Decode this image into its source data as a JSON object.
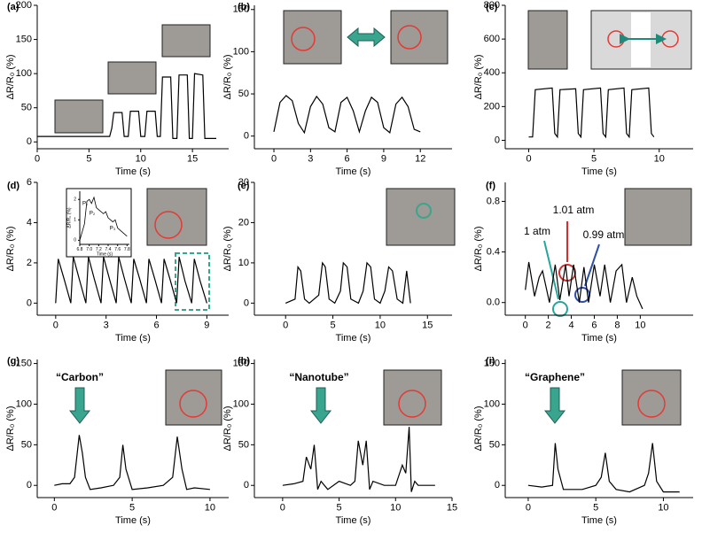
{
  "chart_data": [
    {
      "type": "line",
      "label": "(a)",
      "xlabel": "Time (s)",
      "ylabel": "ΔR/R₀ (%)",
      "xlim": [
        0,
        18.5
      ],
      "ylim": [
        -10,
        200
      ],
      "xticks": [
        0,
        5,
        10,
        15
      ],
      "yticks": [
        0,
        50,
        100,
        150,
        200
      ],
      "x": [
        0,
        7,
        7.2,
        7.4,
        8.2,
        8.4,
        8.8,
        9,
        9.8,
        10,
        10.4,
        10.6,
        11.4,
        11.6,
        11.9,
        12.1,
        12.9,
        13.1,
        13.5,
        13.7,
        14.5,
        14.7,
        15,
        15.2,
        16,
        16.2,
        17.3
      ],
      "series": [
        {
          "color": "#000000",
          "values": [
            8,
            8,
            20,
            43,
            43,
            8,
            8,
            45,
            45,
            8,
            8,
            45,
            45,
            8,
            8,
            95,
            95,
            5,
            5,
            98,
            98,
            5,
            5,
            100,
            98,
            5,
            5
          ]
        }
      ]
    },
    {
      "type": "line",
      "label": "(b)",
      "xlabel": "Time (s)",
      "ylabel": "ΔR/R₀ (%)",
      "xlim": [
        -1.6,
        14.6
      ],
      "ylim": [
        -15,
        155
      ],
      "xticks": [
        0,
        3,
        6,
        9,
        12
      ],
      "yticks": [
        0,
        50,
        100,
        150
      ],
      "x": [
        0,
        0.5,
        1,
        1.5,
        2,
        2.5,
        3,
        3.5,
        4,
        4.5,
        5,
        5.5,
        6,
        6.5,
        7,
        7.5,
        8,
        8.5,
        9,
        9.5,
        10,
        10.5,
        11,
        11.5,
        12
      ],
      "series": [
        {
          "color": "#000000",
          "values": [
            5,
            40,
            48,
            42,
            15,
            4,
            35,
            47,
            38,
            10,
            5,
            40,
            46,
            30,
            5,
            30,
            46,
            40,
            10,
            4,
            38,
            46,
            35,
            8,
            5
          ]
        }
      ]
    },
    {
      "type": "line",
      "label": "(c)",
      "xlabel": "Time (s)",
      "ylabel": "ΔR/R₀ (%)",
      "xlim": [
        -1.8,
        12.6
      ],
      "ylim": [
        -50,
        800
      ],
      "xticks": [
        0,
        5,
        10
      ],
      "yticks": [
        0,
        200,
        400,
        600,
        800
      ],
      "x": [
        0,
        0.3,
        0.5,
        1.8,
        2.0,
        2.2,
        2.4,
        3.6,
        3.8,
        4.0,
        4.2,
        5.5,
        5.7,
        5.9,
        6.1,
        7.3,
        7.5,
        7.7,
        7.9,
        9.2,
        9.4,
        9.6
      ],
      "series": [
        {
          "color": "#000000",
          "values": [
            20,
            20,
            300,
            310,
            40,
            20,
            300,
            305,
            40,
            20,
            300,
            310,
            40,
            20,
            300,
            310,
            40,
            20,
            300,
            310,
            40,
            20
          ]
        }
      ]
    },
    {
      "type": "line",
      "label": "(d)",
      "xlabel": "Time (s)",
      "ylabel": "ΔR/R₀ (%)",
      "xlim": [
        -1.1,
        10.3
      ],
      "ylim": [
        -0.6,
        6
      ],
      "xticks": [
        0,
        3,
        6,
        9
      ],
      "yticks": [
        0,
        2,
        4,
        6
      ],
      "x": [
        0,
        0.15,
        0.5,
        0.9,
        1.05,
        1.4,
        1.8,
        1.95,
        2.3,
        2.7,
        2.85,
        3.2,
        3.6,
        3.75,
        4.1,
        4.5,
        4.65,
        5.0,
        5.4,
        5.55,
        5.9,
        6.3,
        6.45,
        6.8,
        7.2,
        7.35,
        7.7,
        8.1,
        8.25,
        8.6,
        9.0
      ],
      "series": [
        {
          "color": "#000000",
          "values": [
            0,
            2.2,
            1.2,
            0,
            2.3,
            1.2,
            0,
            2.3,
            1.2,
            0,
            2.3,
            1.2,
            0,
            2.3,
            1.2,
            0,
            2.2,
            1.2,
            0,
            2.2,
            1.2,
            0,
            2.2,
            1.2,
            0,
            2.3,
            1.1,
            0,
            2.2,
            1.1,
            0
          ]
        }
      ]
    },
    {
      "type": "line",
      "label": "(e)",
      "xlabel": "Time (s)",
      "ylabel": "ΔR/R₀ (%)",
      "xlim": [
        -3.3,
        17.6
      ],
      "ylim": [
        -3,
        30
      ],
      "xticks": [
        0,
        5,
        10,
        15
      ],
      "yticks": [
        0,
        10,
        20,
        30
      ],
      "x": [
        0,
        1,
        1.3,
        1.6,
        2,
        2.5,
        3.5,
        3.9,
        4.2,
        4.6,
        5.2,
        5.8,
        6.1,
        6.5,
        6.9,
        7.7,
        8.2,
        8.6,
        9.0,
        9.4,
        10.0,
        10.5,
        10.9,
        11.3,
        11.8,
        12.4,
        12.8,
        13.2
      ],
      "series": [
        {
          "color": "#000000",
          "values": [
            0,
            1,
            9,
            8,
            1,
            0,
            2,
            10,
            9,
            1,
            0,
            3,
            10,
            9,
            1,
            0,
            3,
            10,
            9,
            1,
            0,
            3,
            9,
            8,
            1,
            0,
            8,
            0
          ]
        }
      ]
    },
    {
      "type": "line",
      "label": "(f)",
      "xlabel": "Time (s)",
      "ylabel": "ΔR/R₀ (%)",
      "xlim": [
        -1.75,
        14.6
      ],
      "ylim": [
        -0.1,
        0.95
      ],
      "xticks": [
        0,
        2,
        4,
        6,
        8,
        10
      ],
      "yticks": [
        {
          "value": 0,
          "label": "0.0"
        },
        0.4,
        0.8
      ],
      "x": [
        0,
        0.3,
        0.8,
        1.2,
        1.5,
        2.1,
        2.6,
        3.0,
        3.5,
        3.8,
        4.2,
        4.7,
        5.1,
        5.5,
        6.0,
        6.5,
        6.9,
        7.4,
        7.9,
        8.4,
        8.8,
        9.3,
        9.7,
        10.2
      ],
      "series": [
        {
          "color": "#000000",
          "values": [
            0.1,
            0.32,
            0.05,
            0.2,
            0.25,
            0.0,
            0.3,
            0.02,
            0.3,
            0.05,
            0.3,
            0.0,
            0.28,
            0.0,
            0.3,
            0.05,
            0.3,
            0.0,
            0.25,
            0.3,
            0.0,
            0.2,
            0.05,
            -0.05
          ]
        }
      ],
      "annotations": [
        {
          "text": "1.01 atm",
          "color": "#d32f2f"
        },
        {
          "text": "1 atm",
          "color": "#26a69a"
        },
        {
          "text": "0.99 atm",
          "color": "#2e4fa8"
        }
      ]
    },
    {
      "type": "line",
      "label": "(g)",
      "xlabel": "Time (s)",
      "ylabel": "ΔR/R₀ (%)",
      "xlim": [
        -1.1,
        11.2
      ],
      "ylim": [
        -15,
        155
      ],
      "xticks": [
        0,
        5,
        10
      ],
      "yticks": [
        0,
        50,
        100,
        150
      ],
      "x": [
        0,
        0.5,
        1,
        1.3,
        1.6,
        1.8,
        2.0,
        2.3,
        3,
        3.8,
        4.2,
        4.4,
        4.6,
        5,
        6,
        7,
        7.6,
        7.9,
        8.2,
        8.5,
        9,
        10
      ],
      "series": [
        {
          "color": "#000000",
          "values": [
            0,
            2,
            2,
            10,
            62,
            40,
            10,
            -5,
            -3,
            0,
            10,
            50,
            20,
            -5,
            -3,
            0,
            10,
            60,
            20,
            -5,
            -3,
            -5
          ]
        }
      ],
      "annotations": [
        {
          "text": "“Carbon”",
          "color": "#000000"
        }
      ]
    },
    {
      "type": "line",
      "label": "(h)",
      "xlabel": "Time (s)",
      "ylabel": "ΔR/R₀ (%)",
      "xlim": [
        -2.5,
        15
      ],
      "ylim": [
        -15,
        155
      ],
      "xticks": [
        0,
        5,
        10,
        15
      ],
      "yticks": [
        0,
        50,
        100,
        150
      ],
      "x": [
        0,
        1,
        1.8,
        2.1,
        2.5,
        2.8,
        3.1,
        3.4,
        4,
        5,
        6,
        6.4,
        6.7,
        7.1,
        7.4,
        7.7,
        8,
        9,
        10,
        10.6,
        10.9,
        11.2,
        11.4,
        11.7,
        12,
        13.5
      ],
      "series": [
        {
          "color": "#000000",
          "values": [
            0,
            2,
            5,
            35,
            20,
            50,
            -5,
            5,
            -5,
            5,
            0,
            5,
            55,
            25,
            55,
            -5,
            5,
            0,
            0,
            25,
            15,
            72,
            -8,
            5,
            0,
            0
          ]
        }
      ],
      "annotations": [
        {
          "text": "“Nanotube”",
          "color": "#000000"
        }
      ]
    },
    {
      "type": "line",
      "label": "(i)",
      "xlabel": "Time (s)",
      "ylabel": "ΔR/R₀ (%)",
      "xlim": [
        -1.7,
        12.2
      ],
      "ylim": [
        -15,
        155
      ],
      "xticks": [
        0,
        5,
        10
      ],
      "yticks": [
        0,
        50,
        100,
        150
      ],
      "x": [
        0,
        1,
        1.8,
        2.0,
        2.2,
        2.6,
        3,
        4,
        5,
        5.4,
        5.7,
        6.0,
        6.5,
        7.5,
        8.6,
        8.9,
        9.2,
        9.5,
        10,
        11.2
      ],
      "series": [
        {
          "color": "#000000",
          "values": [
            0,
            -2,
            0,
            52,
            20,
            -5,
            -5,
            -5,
            0,
            10,
            40,
            5,
            -5,
            -8,
            0,
            15,
            52,
            5,
            -8,
            -8
          ]
        }
      ],
      "annotations": [
        {
          "text": "“Graphene”",
          "color": "#000000"
        }
      ]
    },
    {
      "type": "line",
      "xlabel": "Time (s)",
      "ylabel": "ΔR/R₀ (%)",
      "xlim": [
        6.8,
        7.85
      ],
      "ylim": [
        -0.2,
        2.4
      ],
      "xticks": [
        6.8,
        {
          "value": 7,
          "label": "7.0"
        },
        7.2,
        7.4,
        7.6,
        7.8
      ],
      "yticks": [
        0,
        1,
        2
      ],
      "x": [
        6.8,
        6.9,
        6.95,
        7.0,
        7.05,
        7.1,
        7.15,
        7.2,
        7.3,
        7.35,
        7.4,
        7.5,
        7.55,
        7.6,
        7.7,
        7.8
      ],
      "series": [
        {
          "color": "#000000",
          "values": [
            0,
            0.8,
            1.9,
            2.0,
            1.8,
            2.1,
            1.6,
            1.5,
            1.3,
            1.4,
            1.1,
            0.9,
            1.0,
            0.6,
            0.4,
            0.2
          ]
        }
      ],
      "annotations": [
        {
          "text": "P₁",
          "color": "#000000"
        },
        {
          "text": "P₂",
          "color": "#000000"
        },
        {
          "text": "P₃",
          "color": "#000000"
        }
      ]
    }
  ]
}
